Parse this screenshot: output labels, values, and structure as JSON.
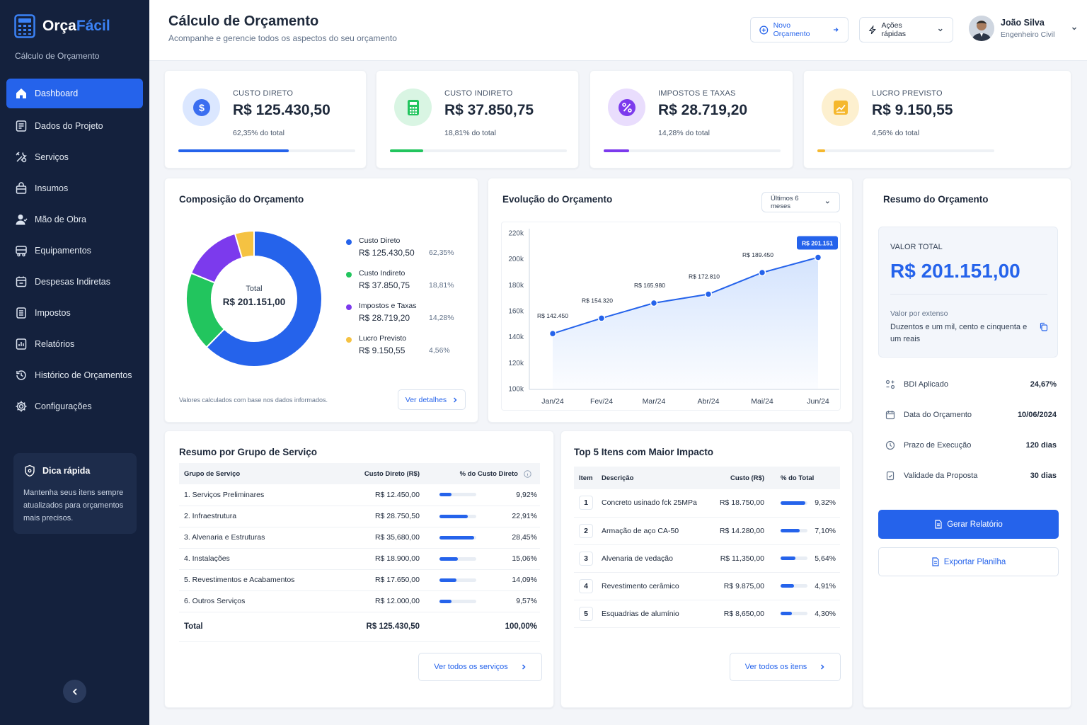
{
  "app": {
    "name_main": "Orça",
    "name_accent": "Fácil",
    "subtitle": "Cálculo de Orçamento",
    "accent": "#2563eb"
  },
  "nav": [
    {
      "label": "Dashboard",
      "icon": "home-icon",
      "active": true
    },
    {
      "label": "Dados do Projeto",
      "icon": "document-icon"
    },
    {
      "label": "Serviços",
      "icon": "tools-icon"
    },
    {
      "label": "Insumos",
      "icon": "bag-icon"
    },
    {
      "label": "Mão de Obra",
      "icon": "worker-icon"
    },
    {
      "label": "Equipamentos",
      "icon": "truck-icon"
    },
    {
      "label": "Despesas Indiretas",
      "icon": "wallet-icon"
    },
    {
      "label": "Impostos",
      "icon": "receipt-icon"
    },
    {
      "label": "Relatórios",
      "icon": "report-icon"
    },
    {
      "label": "Histórico de Orçamentos",
      "icon": "history-icon"
    },
    {
      "label": "Configurações",
      "icon": "gear-icon"
    }
  ],
  "tip": {
    "title": "Dica rápida",
    "text": "Mantenha seus itens sempre atualizados para orçamentos mais precisos."
  },
  "header": {
    "title": "Cálculo de Orçamento",
    "subtitle": "Acompanhe e gerencie todos os aspectos do seu orçamento",
    "new_button": "Novo Orçamento",
    "quick_actions": "Ações rápidas",
    "user_name": "João Silva",
    "user_role": "Engenheiro Civil"
  },
  "kpis": [
    {
      "label": "CUSTO DIRETO",
      "value": "R$ 125.430,50",
      "pct_text": "62,35% do total",
      "fraction": 0.6235,
      "color": "#2563eb",
      "bg": "#dbe7ff",
      "icon": "dollar-icon"
    },
    {
      "label": "CUSTO INDIRETO",
      "value": "R$ 37.850,75",
      "pct_text": "18,81% do total",
      "fraction": 0.1881,
      "color": "#22c55e",
      "bg": "#d9f5e3",
      "icon": "calculator-icon"
    },
    {
      "label": "IMPOSTOS E TAXAS",
      "value": "R$ 28.719,20",
      "pct_text": "14,28% do total",
      "fraction": 0.1428,
      "color": "#7c3aed",
      "bg": "#e9ddfd",
      "icon": "percent-icon"
    },
    {
      "label": "LUCRO PREVISTO",
      "value": "R$ 9.150,55",
      "pct_text": "4,56% do total",
      "fraction": 0.0456,
      "color": "#f5b82e",
      "bg": "#fdf0cf",
      "icon": "growth-icon"
    }
  ],
  "composition": {
    "title": "Composição do Orçamento",
    "center_label": "Total",
    "center_value": "R$ 201.151,00",
    "footnote": "Valores calculados com base nos dados informados.",
    "details_button": "Ver detalhes"
  },
  "chart_data": [
    {
      "type": "pie",
      "categories": [
        "Custo Direto",
        "Custo Indireto",
        "Impostos e Taxas",
        "Lucro Previsto"
      ],
      "values": [
        125430.5,
        37850.75,
        28719.2,
        9150.55
      ],
      "value_labels": [
        "R$ 125.430,50",
        "R$ 37.850,75",
        "R$ 28.719,20",
        "R$ 9.150,55"
      ],
      "percent_labels": [
        "62,35%",
        "18,81%",
        "14,28%",
        "4,56%"
      ],
      "colors": [
        "#2563eb",
        "#22c55e",
        "#7c3aed",
        "#f5c242"
      ],
      "legend": "right"
    },
    {
      "type": "line",
      "title": "Evolução do Orçamento",
      "range_selector": "Últimos 6 meses",
      "categories": [
        "Jan/24",
        "Fev/24",
        "Mar/24",
        "Abr/24",
        "Mai/24",
        "Jun/24"
      ],
      "values": [
        142450,
        154320,
        165980,
        172810,
        189450,
        201151
      ],
      "point_labels": [
        "R$ 142.450",
        "R$ 154.320",
        "R$ 165.980",
        "R$ 172.810",
        "R$ 189.450",
        "R$ 201.151"
      ],
      "yticks": [
        100000,
        120000,
        140000,
        160000,
        180000,
        200000,
        220000
      ],
      "ytick_labels": [
        "100k",
        "120k",
        "140k",
        "160k",
        "180k",
        "200k",
        "220k"
      ],
      "ylim": [
        100000,
        220000
      ],
      "color": "#2563eb",
      "grid": false
    }
  ],
  "summary": {
    "title": "Resumo do Orçamento",
    "total_label": "VALOR TOTAL",
    "total_value": "R$ 201.151,00",
    "extenso_label": "Valor por extenso",
    "extenso_text": "Duzentos e um mil, cento e cinquenta e um reais",
    "rows": [
      {
        "label": "BDI Aplicado",
        "value": "24,67%",
        "icon": "bdi-icon"
      },
      {
        "label": "Data do Orçamento",
        "value": "10/06/2024",
        "icon": "calendar-icon"
      },
      {
        "label": "Prazo de Execução",
        "value": "120 dias",
        "icon": "clock-icon"
      },
      {
        "label": "Validade da Proposta",
        "value": "30 dias",
        "icon": "file-check-icon"
      }
    ],
    "report_button": "Gerar Relatório",
    "export_button": "Exportar Planilha"
  },
  "groups": {
    "title": "Resumo por Grupo de Serviço",
    "headers": [
      "Grupo de Serviço",
      "Custo Direto (R$)",
      "% do Custo Direto"
    ],
    "rows": [
      {
        "name": "1. Serviços Preliminares",
        "cost": "R$ 12.450,00",
        "pct": "9,92%",
        "fraction": 0.0992
      },
      {
        "name": "2. Infraestrutura",
        "cost": "R$ 28.750,50",
        "pct": "22,91%",
        "fraction": 0.2291
      },
      {
        "name": "3. Alvenaria e Estruturas",
        "cost": "R$ 35,680,00",
        "pct": "28,45%",
        "fraction": 0.2845
      },
      {
        "name": "4. Instalações",
        "cost": "R$ 18.900,00",
        "pct": "15,06%",
        "fraction": 0.1506
      },
      {
        "name": "5. Revestimentos e Acabamentos",
        "cost": "R$ 17.650,00",
        "pct": "14,09%",
        "fraction": 0.1409
      },
      {
        "name": "6. Outros Serviços",
        "cost": "R$ 12.000,00",
        "pct": "9,57%",
        "fraction": 0.0957
      }
    ],
    "total_label": "Total",
    "total_cost": "R$ 125.430,50",
    "total_pct": "100,00%",
    "button": "Ver todos os serviços"
  },
  "top5": {
    "title": "Top 5 Itens com Maior Impacto",
    "headers": [
      "Item",
      "Descrição",
      "Custo (R$)",
      "% do Total"
    ],
    "rows": [
      {
        "n": "1",
        "desc": "Concreto usinado fck 25MPa",
        "cost": "R$ 18.750,00",
        "pct": "9,32%",
        "fraction": 0.0932
      },
      {
        "n": "2",
        "desc": "Armação de aço CA-50",
        "cost": "R$ 14.280,00",
        "pct": "7,10%",
        "fraction": 0.071
      },
      {
        "n": "3",
        "desc": "Alvenaria de vedação",
        "cost": "R$ 11,350,00",
        "pct": "5,64%",
        "fraction": 0.0564
      },
      {
        "n": "4",
        "desc": "Revestimento cerâmico",
        "cost": "R$ 9.875,00",
        "pct": "4,91%",
        "fraction": 0.0491
      },
      {
        "n": "5",
        "desc": "Esquadrias de alumínio",
        "cost": "R$ 8,650,00",
        "pct": "4,30%",
        "fraction": 0.043
      }
    ],
    "button": "Ver todos os itens"
  }
}
